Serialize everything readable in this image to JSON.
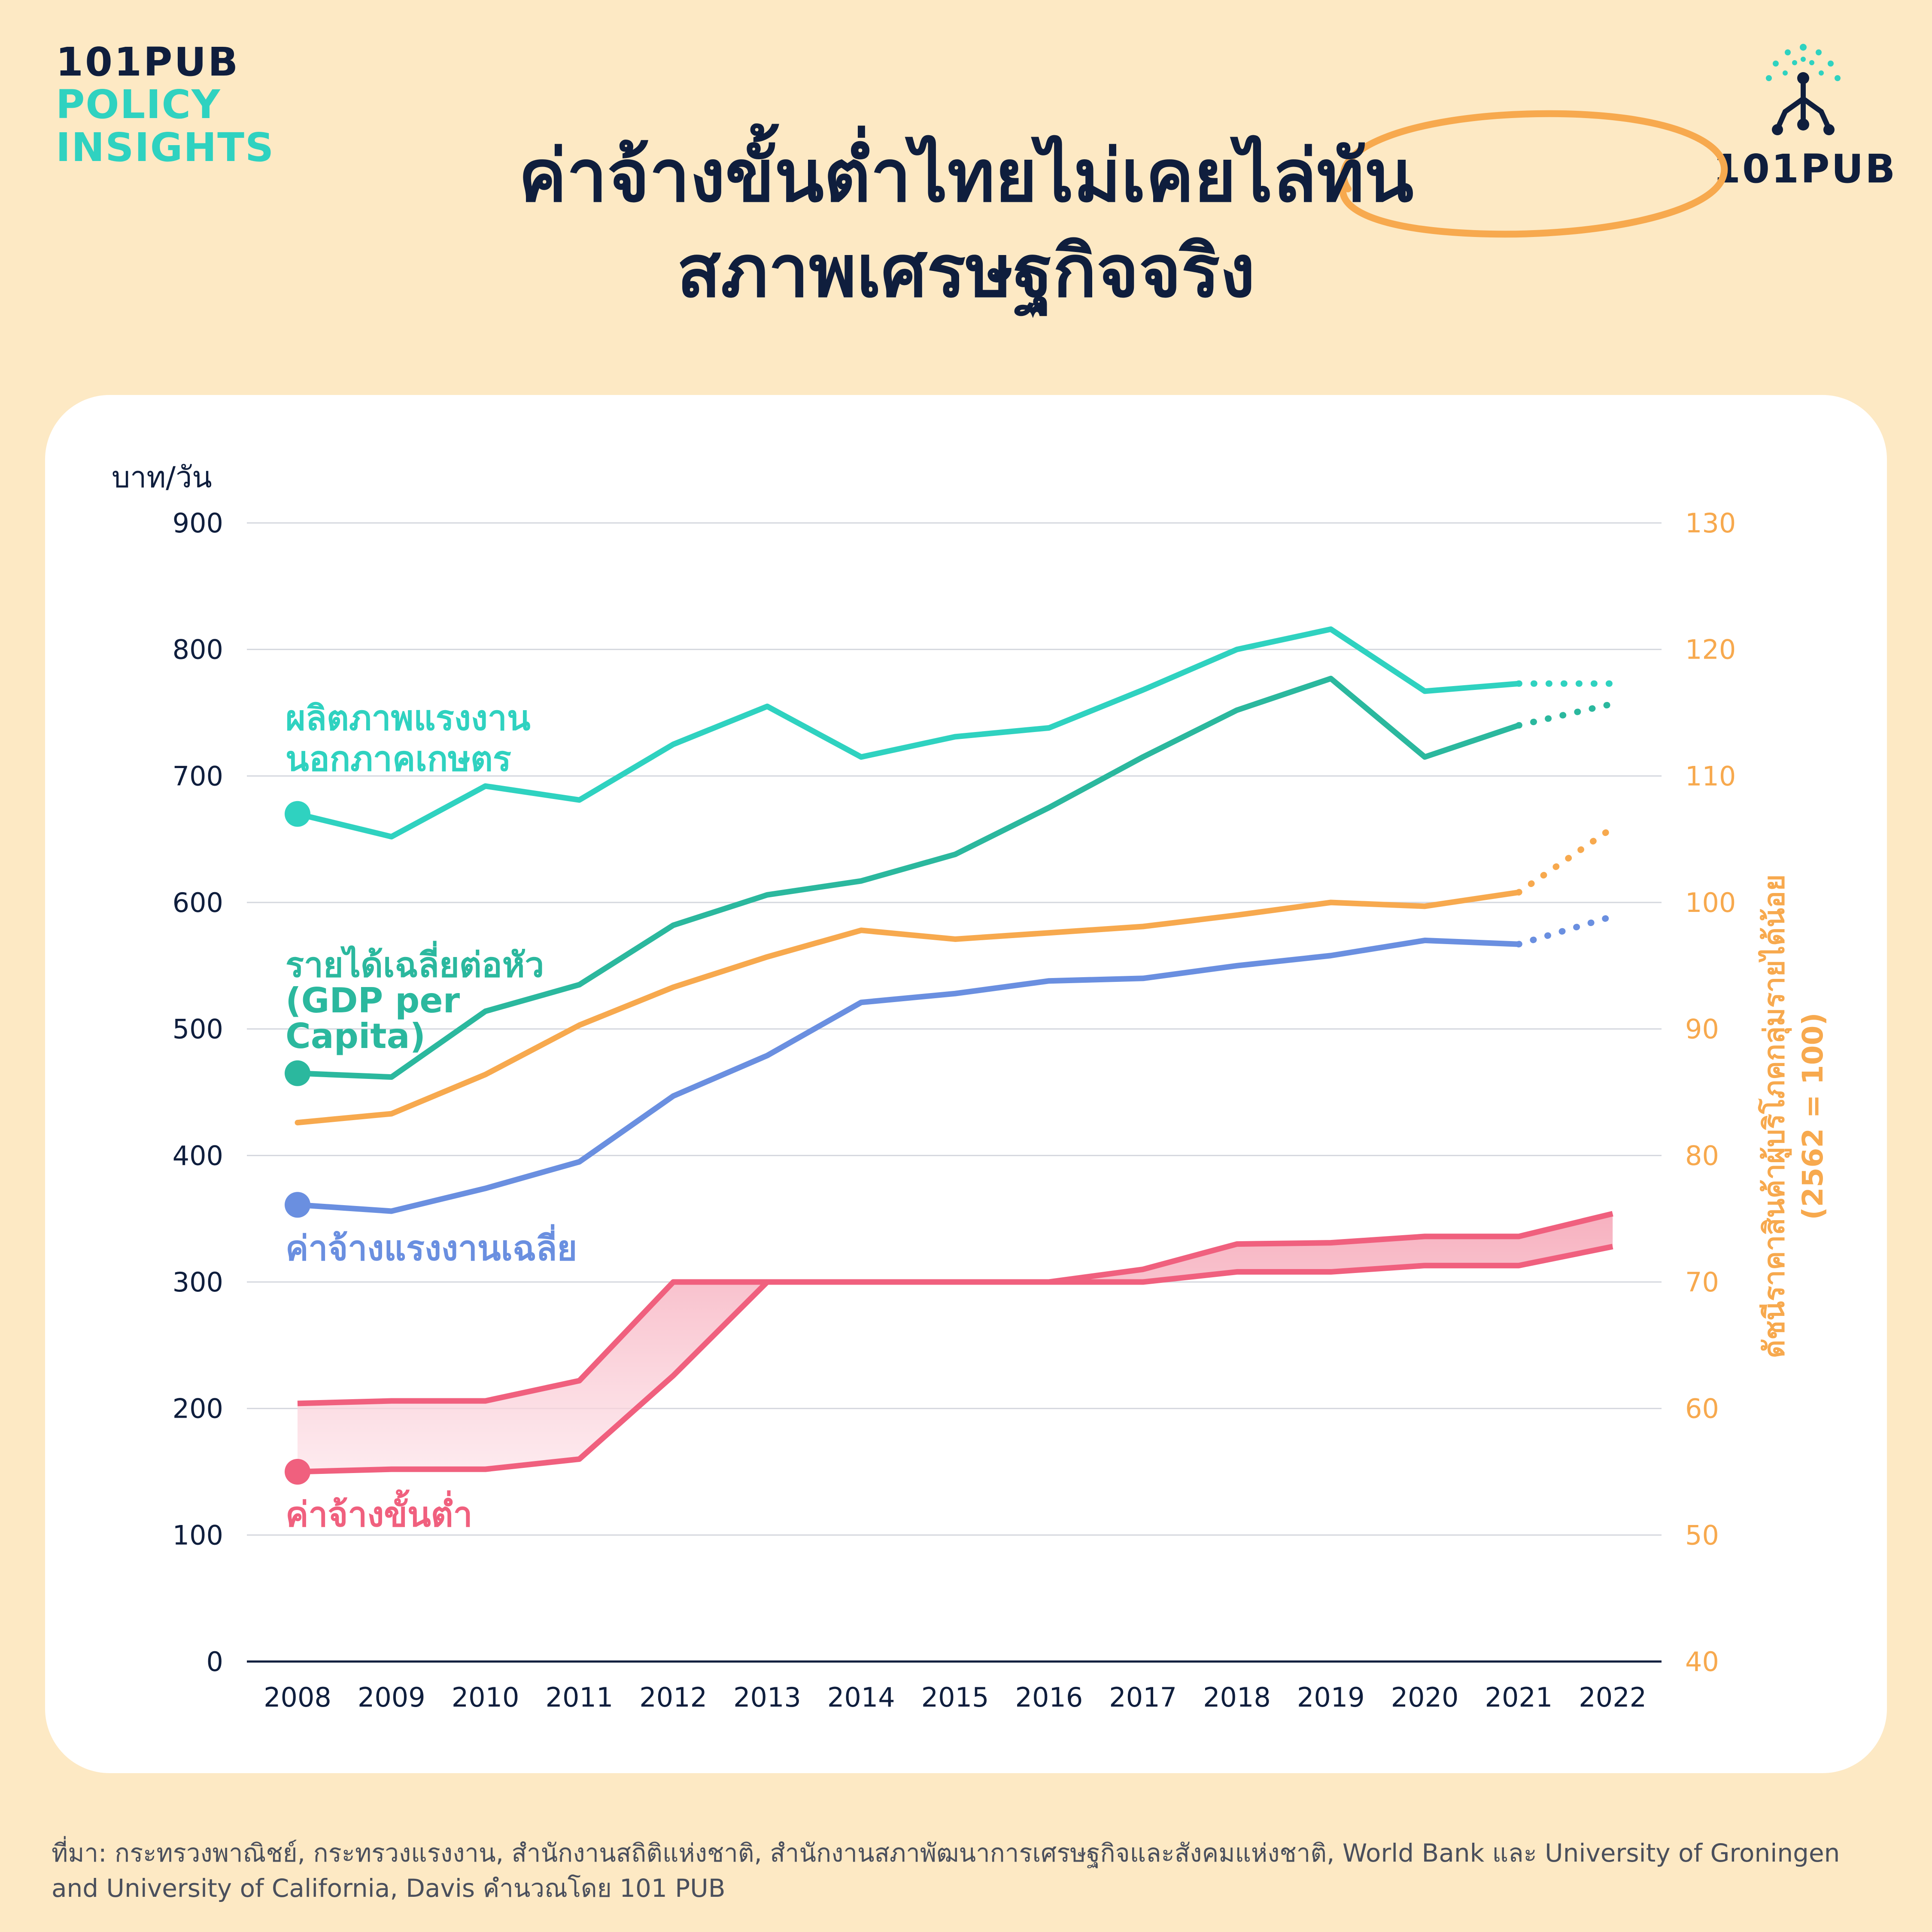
{
  "brand": {
    "line1": "101PUB",
    "line2": "POLICY",
    "line3": "INSIGHTS",
    "logo_text": "101PUB",
    "logo_icon": "101pub-network-icon"
  },
  "title": {
    "line1": "ค่าจ้างขั้นต่ำไทยไม่เคยไล่ทัน",
    "line2": "สภาพเศรษฐกิจจริง"
  },
  "colors": {
    "background": "#fde9c4",
    "navy": "#0f1e3d",
    "teal_light": "#2fd2c0",
    "teal_dark": "#2bb89e",
    "orange": "#f7a94e",
    "blue": "#6a8fe0",
    "pink": "#f0607e",
    "pink_fill": "#f8bfcb"
  },
  "chart_data": {
    "type": "line",
    "categories": [
      "2008",
      "2009",
      "2010",
      "2011",
      "2012",
      "2013",
      "2014",
      "2015",
      "2016",
      "2017",
      "2018",
      "2019",
      "2020",
      "2021",
      "2022"
    ],
    "y_left": {
      "label": "บาท/วัน",
      "ticks": [
        "0",
        "100",
        "200",
        "300",
        "400",
        "500",
        "600",
        "700",
        "800",
        "900"
      ],
      "range": [
        0,
        900
      ]
    },
    "y_right": {
      "label_line1": "ดัชนีราคาสินค้าผู้บริโภคกลุ่มรายได้น้อย",
      "label_line2": "(2562 = 100)",
      "ticks": [
        "40",
        "50",
        "60",
        "70",
        "80",
        "90",
        "100",
        "110",
        "120",
        "130"
      ],
      "range": [
        40,
        130
      ]
    },
    "grid": "horizontal",
    "series": [
      {
        "name": "ผลิตภาพแรงงาน",
        "name_line2": "นอกภาคเกษตร",
        "axis": "left",
        "color": "#2fd2c0",
        "values": [
          670,
          652,
          692,
          681,
          725,
          755,
          715,
          731,
          738,
          768,
          800,
          816,
          767,
          773,
          773
        ],
        "projected_from": "2021"
      },
      {
        "name": "รายได้เฉลี่ยต่อหัว",
        "name_line2": "(GDP per",
        "name_line3": "Capita)",
        "axis": "left",
        "color": "#2bb89e",
        "values": [
          465,
          462,
          514,
          535,
          582,
          606,
          617,
          638,
          675,
          715,
          752,
          777,
          715,
          740,
          757
        ],
        "projected_from": "2021"
      },
      {
        "name": "ดัชนีราคาสินค้าผู้บริโภคกลุ่มรายได้น้อย",
        "axis": "right",
        "color": "#f7a94e",
        "values": [
          82.6,
          83.3,
          86.4,
          90.3,
          93.3,
          95.7,
          97.8,
          97.1,
          97.6,
          98.1,
          99.0,
          100.0,
          99.7,
          100.8,
          105.9
        ],
        "projected_from": "2021"
      },
      {
        "name": "ค่าจ้างแรงงานเฉลี่ย",
        "axis": "left",
        "color": "#6a8fe0",
        "values": [
          361,
          356,
          374,
          395,
          447,
          479,
          521,
          528,
          538,
          540,
          550,
          558,
          570,
          567,
          589
        ],
        "projected_from": "2021"
      },
      {
        "name": "ค่าจ้างขั้นต่ำ",
        "axis": "left",
        "color": "#f0607e",
        "type": "band",
        "max": [
          204,
          206,
          206,
          222,
          300,
          300,
          300,
          300,
          300,
          310,
          330,
          331,
          336,
          336,
          354
        ],
        "min": [
          150,
          152,
          152,
          160,
          226,
          300,
          300,
          300,
          300,
          300,
          308,
          308,
          313,
          313,
          328
        ]
      }
    ]
  },
  "source": {
    "line1": "ที่มา: กระทรวงพาณิชย์, กระทรวงแรงงาน, สำนักงานสถิติแห่งชาติ, สำนักงานสภาพัฒนาการเศรษฐกิจและสังคมแห่งชาติ, World Bank และ University of Groningen",
    "line2": "and University of California, Davis คำนวณโดย 101 PUB"
  }
}
